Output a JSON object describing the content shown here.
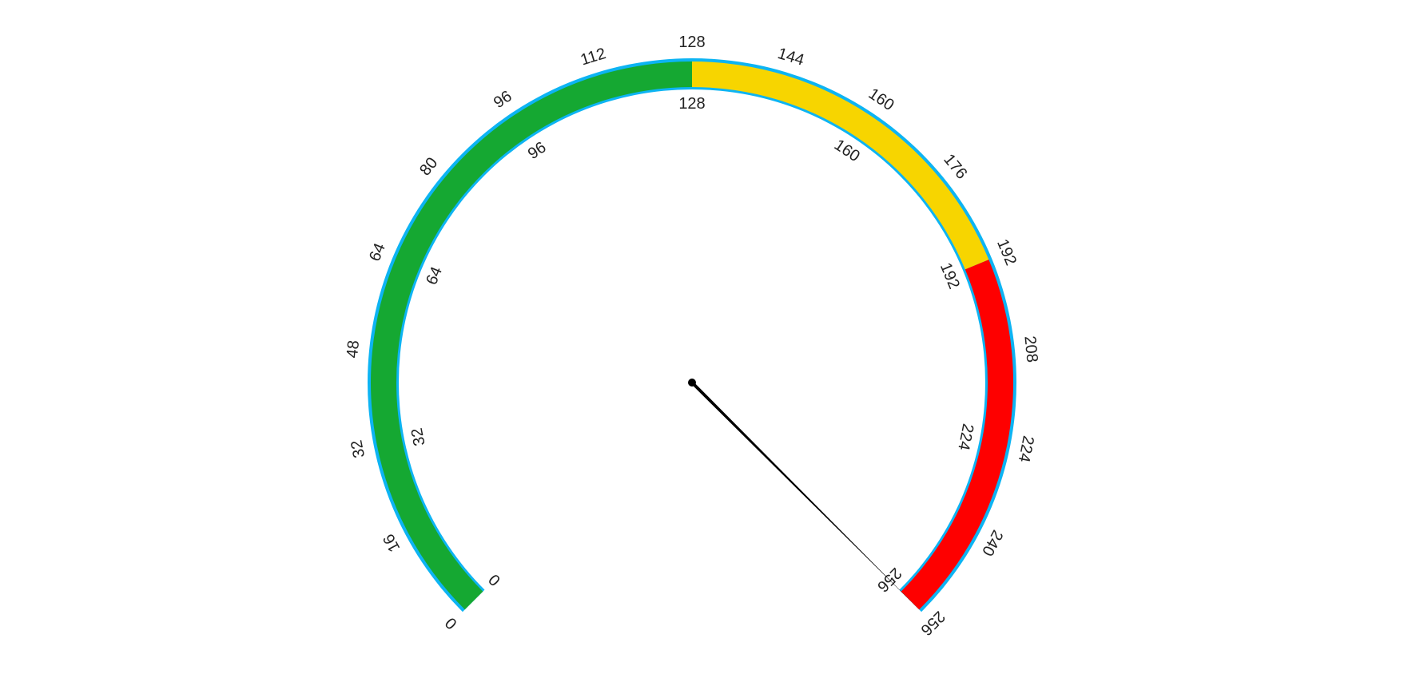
{
  "chart_data": {
    "type": "gauge",
    "min": 0,
    "max": 256,
    "value": 256,
    "start_angle_deg": 225,
    "end_angle_deg": -45,
    "bands": [
      {
        "from": 0,
        "to": 128,
        "color": "#15a832"
      },
      {
        "from": 128,
        "to": 192,
        "color": "#f7d500"
      },
      {
        "from": 192,
        "to": 256,
        "color": "#fe0000"
      }
    ],
    "outer_border_color": "#0db4f3",
    "needle_color": "#000000",
    "outer_ticks": [
      {
        "value": 0,
        "label": "0"
      },
      {
        "value": 16,
        "label": "16"
      },
      {
        "value": 32,
        "label": "32"
      },
      {
        "value": 48,
        "label": "48"
      },
      {
        "value": 64,
        "label": "64"
      },
      {
        "value": 80,
        "label": "80"
      },
      {
        "value": 96,
        "label": "96"
      },
      {
        "value": 112,
        "label": "112"
      },
      {
        "value": 128,
        "label": "128"
      },
      {
        "value": 144,
        "label": "144"
      },
      {
        "value": 160,
        "label": "160"
      },
      {
        "value": 176,
        "label": "176"
      },
      {
        "value": 192,
        "label": "192"
      },
      {
        "value": 208,
        "label": "208"
      },
      {
        "value": 224,
        "label": "224"
      },
      {
        "value": 240,
        "label": "240"
      },
      {
        "value": 256,
        "label": "256"
      }
    ],
    "inner_ticks": [
      {
        "value": 0,
        "label": "0"
      },
      {
        "value": 32,
        "label": "32"
      },
      {
        "value": 64,
        "label": "64"
      },
      {
        "value": 96,
        "label": "96"
      },
      {
        "value": 128,
        "label": "128"
      },
      {
        "value": 160,
        "label": "160"
      },
      {
        "value": 192,
        "label": "192"
      },
      {
        "value": 224,
        "label": "224"
      },
      {
        "value": 256,
        "label": "256"
      }
    ]
  }
}
